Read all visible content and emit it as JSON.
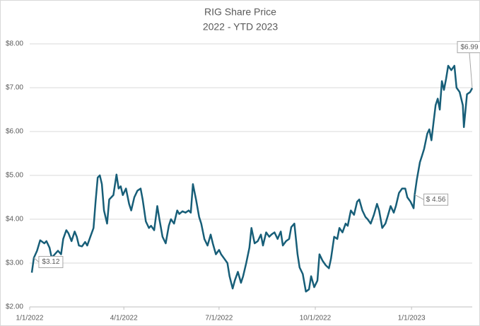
{
  "chart_data": {
    "type": "line",
    "title": "RIG Share Price",
    "subtitle": "2022 - YTD 2023",
    "x": [
      "2022-01-03",
      "2022-01-05",
      "2022-01-08",
      "2022-01-11",
      "2022-01-15",
      "2022-01-17",
      "2022-01-20",
      "2022-01-22",
      "2022-01-25",
      "2022-01-28",
      "2022-01-31",
      "2022-02-02",
      "2022-02-05",
      "2022-02-07",
      "2022-02-10",
      "2022-02-13",
      "2022-02-15",
      "2022-02-17",
      "2022-02-20",
      "2022-02-23",
      "2022-02-25",
      "2022-02-28",
      "2022-03-03",
      "2022-03-05",
      "2022-03-07",
      "2022-03-09",
      "2022-03-11",
      "2022-03-13",
      "2022-03-16",
      "2022-03-18",
      "2022-03-22",
      "2022-03-25",
      "2022-03-27",
      "2022-03-29",
      "2022-03-31",
      "2022-04-03",
      "2022-04-06",
      "2022-04-08",
      "2022-04-11",
      "2022-04-14",
      "2022-04-17",
      "2022-04-19",
      "2022-04-22",
      "2022-04-25",
      "2022-04-27",
      "2022-04-30",
      "2022-05-03",
      "2022-05-05",
      "2022-05-08",
      "2022-05-11",
      "2022-05-14",
      "2022-05-16",
      "2022-05-19",
      "2022-05-22",
      "2022-05-24",
      "2022-05-27",
      "2022-05-30",
      "2022-06-02",
      "2022-06-04",
      "2022-06-06",
      "2022-06-09",
      "2022-06-12",
      "2022-06-14",
      "2022-06-17",
      "2022-06-20",
      "2022-06-23",
      "2022-06-25",
      "2022-06-28",
      "2022-07-01",
      "2022-07-03",
      "2022-07-06",
      "2022-07-09",
      "2022-07-11",
      "2022-07-14",
      "2022-07-16",
      "2022-07-19",
      "2022-07-22",
      "2022-07-24",
      "2022-07-27",
      "2022-07-30",
      "2022-08-01",
      "2022-08-04",
      "2022-08-07",
      "2022-08-10",
      "2022-08-12",
      "2022-08-15",
      "2022-08-18",
      "2022-08-20",
      "2022-08-23",
      "2022-08-26",
      "2022-08-29",
      "2022-08-31",
      "2022-09-03",
      "2022-09-06",
      "2022-09-08",
      "2022-09-11",
      "2022-09-14",
      "2022-09-16",
      "2022-09-19",
      "2022-09-22",
      "2022-09-25",
      "2022-09-27",
      "2022-09-30",
      "2022-10-03",
      "2022-10-05",
      "2022-10-08",
      "2022-10-11",
      "2022-10-14",
      "2022-10-16",
      "2022-10-19",
      "2022-10-22",
      "2022-10-24",
      "2022-10-27",
      "2022-10-30",
      "2022-11-01",
      "2022-11-04",
      "2022-11-07",
      "2022-11-10",
      "2022-11-12",
      "2022-11-15",
      "2022-11-18",
      "2022-11-20",
      "2022-11-23",
      "2022-11-26",
      "2022-11-29",
      "2022-12-01",
      "2022-12-04",
      "2022-12-07",
      "2022-12-09",
      "2022-12-12",
      "2022-12-15",
      "2022-12-17",
      "2022-12-20",
      "2022-12-23",
      "2022-12-26",
      "2022-12-28",
      "2022-12-31",
      "2023-01-03",
      "2023-01-04",
      "2023-01-06",
      "2023-01-09",
      "2023-01-11",
      "2023-01-13",
      "2023-01-16",
      "2023-01-18",
      "2023-01-20",
      "2023-01-22",
      "2023-01-24",
      "2023-01-26",
      "2023-01-28",
      "2023-01-30",
      "2023-02-01",
      "2023-02-03",
      "2023-02-05",
      "2023-02-08",
      "2023-02-11",
      "2023-02-13",
      "2023-02-16",
      "2023-02-19",
      "2023-02-20",
      "2023-02-23",
      "2023-02-26",
      "2023-02-28"
    ],
    "series": [
      {
        "name": "RIG",
        "color": "#175e78",
        "values": [
          2.78,
          3.12,
          3.28,
          3.52,
          3.45,
          3.5,
          3.35,
          3.12,
          3.2,
          3.28,
          3.2,
          3.55,
          3.75,
          3.68,
          3.5,
          3.72,
          3.6,
          3.4,
          3.38,
          3.48,
          3.4,
          3.6,
          3.8,
          4.4,
          4.95,
          5.0,
          4.8,
          4.2,
          3.9,
          4.45,
          4.55,
          5.02,
          4.7,
          4.75,
          4.55,
          4.7,
          4.35,
          4.2,
          4.5,
          4.65,
          4.7,
          4.45,
          3.95,
          3.8,
          3.85,
          3.75,
          4.3,
          4.0,
          3.6,
          3.45,
          3.85,
          4.0,
          3.9,
          4.2,
          4.12,
          4.18,
          4.15,
          4.2,
          4.15,
          4.8,
          4.45,
          4.05,
          3.9,
          3.55,
          3.4,
          3.65,
          3.45,
          3.2,
          3.3,
          3.2,
          3.1,
          3.0,
          2.7,
          2.42,
          2.6,
          2.8,
          2.55,
          2.7,
          3.0,
          3.35,
          3.8,
          3.45,
          3.5,
          3.65,
          3.4,
          3.7,
          3.6,
          3.65,
          3.7,
          3.55,
          3.72,
          3.4,
          3.5,
          3.55,
          3.82,
          3.9,
          3.2,
          2.9,
          2.75,
          2.35,
          2.4,
          2.7,
          2.45,
          2.6,
          3.2,
          3.05,
          2.95,
          2.88,
          3.1,
          3.6,
          3.55,
          3.8,
          3.7,
          3.9,
          3.85,
          4.2,
          4.1,
          4.4,
          4.45,
          4.2,
          4.05,
          4.0,
          3.9,
          4.1,
          4.35,
          4.2,
          3.8,
          3.9,
          4.05,
          4.3,
          4.15,
          4.3,
          4.6,
          4.7,
          4.7,
          4.5,
          4.4,
          4.25,
          4.56,
          4.9,
          5.3,
          5.45,
          5.6,
          5.95,
          6.05,
          5.8,
          6.2,
          6.6,
          6.75,
          6.5,
          7.15,
          6.95,
          7.2,
          7.5,
          7.4,
          7.5,
          7.0,
          6.9,
          6.6,
          6.1,
          6.85,
          6.9,
          6.99
        ]
      }
    ],
    "xlim": [
      "2022-01-01",
      "2023-02-28"
    ],
    "xticks": [
      {
        "value": "2022-01-01",
        "label": "1/1/2022"
      },
      {
        "value": "2022-04-01",
        "label": "4/1/2022"
      },
      {
        "value": "2022-07-01",
        "label": "7/1/2022"
      },
      {
        "value": "2022-10-01",
        "label": "10/1/2022"
      },
      {
        "value": "2023-01-01",
        "label": "1/1/2023"
      }
    ],
    "ylim": [
      2,
      8
    ],
    "yticks": [
      {
        "value": 2,
        "label": "$2.00"
      },
      {
        "value": 3,
        "label": "$3.00"
      },
      {
        "value": 4,
        "label": "$4.00"
      },
      {
        "value": 5,
        "label": "$5.00"
      },
      {
        "value": 6,
        "label": "$6.00"
      },
      {
        "value": 7,
        "label": "$7.00"
      },
      {
        "value": 8,
        "label": "$8.00"
      }
    ],
    "grid": true,
    "annotations": [
      {
        "label": "$3.12",
        "x": "2022-01-05",
        "value": 3.12
      },
      {
        "label": "$ 4.56",
        "x": "2023-01-04",
        "value": 4.56
      },
      {
        "label": "$6.99",
        "x": "2023-02-28",
        "value": 6.99
      }
    ]
  }
}
